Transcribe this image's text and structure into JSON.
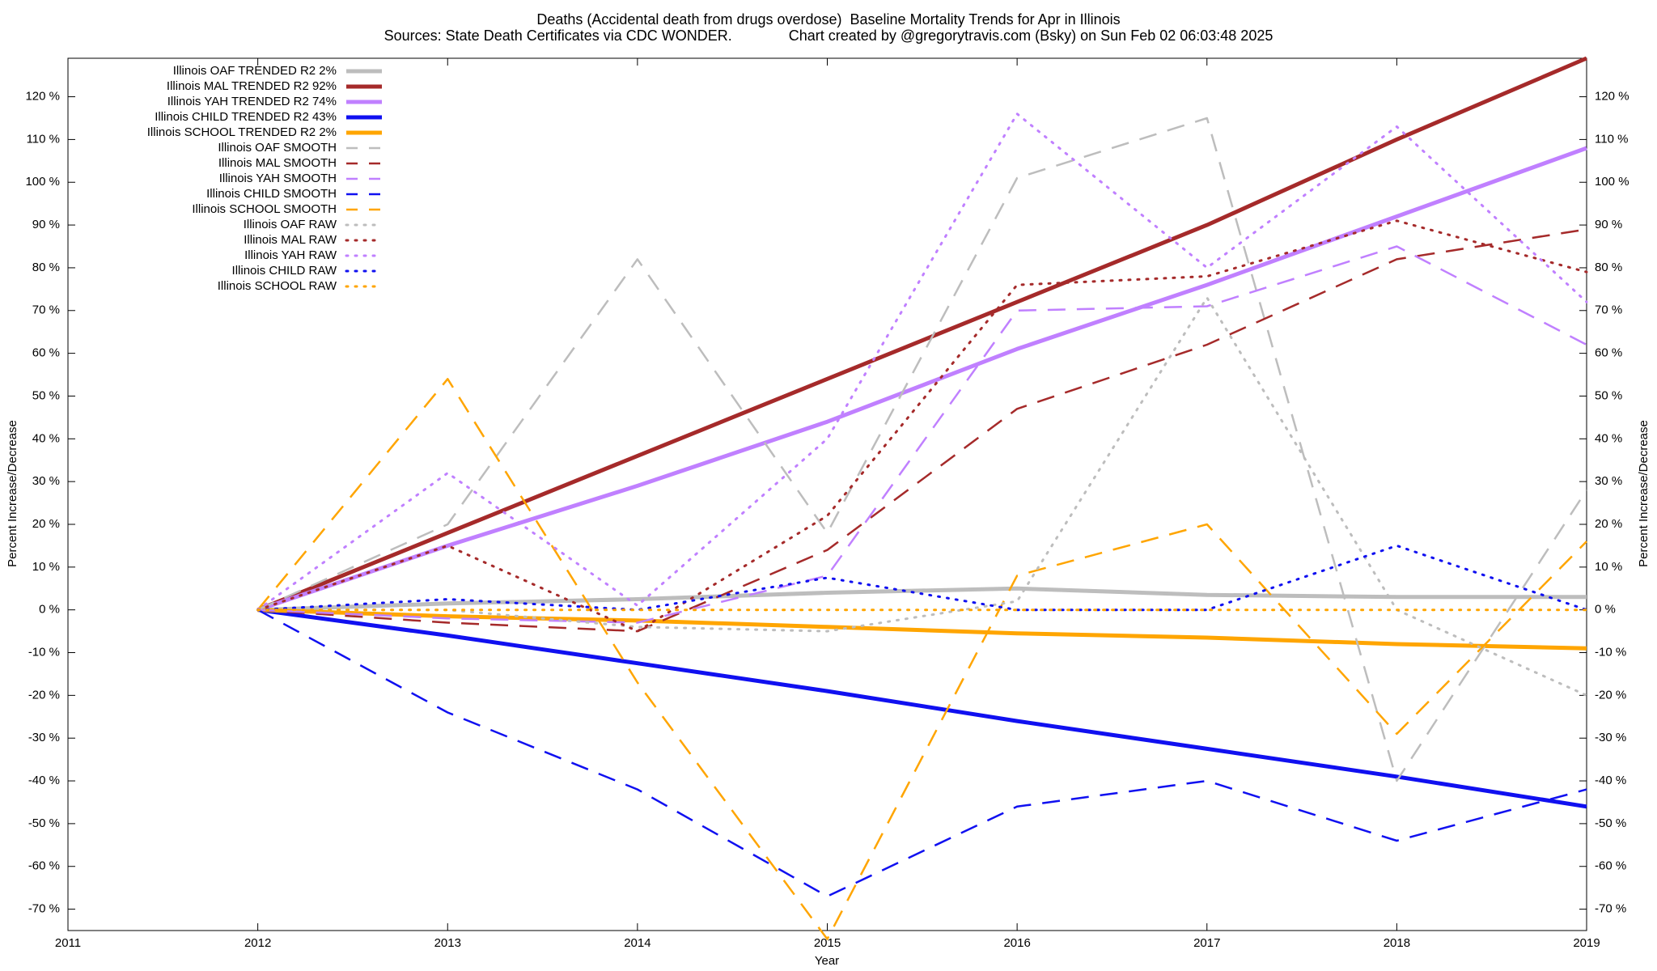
{
  "chart_data": {
    "type": "line",
    "title": "Deaths (Accidental death from drugs overdose)  Baseline Mortality Trends for Apr in Illinois",
    "subtitle": "Sources: State Death Certificates via CDC WONDER.              Chart created by @gregorytravis.com (Bsky) on Sun Feb 02 06:03:48 2025",
    "x_label": "Year",
    "y_label": "Percent Increase/Decrease",
    "y2_label": "Percent Increase/Decrease",
    "x": [
      2012,
      2013,
      2014,
      2015,
      2016,
      2017,
      2018,
      2019
    ],
    "xlim": [
      2011,
      2019
    ],
    "xticks": [
      2011,
      2012,
      2013,
      2014,
      2015,
      2016,
      2017,
      2018,
      2019
    ],
    "ylim": [
      -75,
      129
    ],
    "yticks": [
      {
        "value": -70,
        "label": "-70 %"
      },
      {
        "value": -60,
        "label": "-60 %"
      },
      {
        "value": -50,
        "label": "-50 %"
      },
      {
        "value": -40,
        "label": "-40 %"
      },
      {
        "value": -30,
        "label": "-30 %"
      },
      {
        "value": -20,
        "label": "-20 %"
      },
      {
        "value": -10,
        "label": "-10 %"
      },
      {
        "value": 0,
        "label": "0 %"
      },
      {
        "value": 10,
        "label": "10 %"
      },
      {
        "value": 20,
        "label": "20 %"
      },
      {
        "value": 30,
        "label": "30 %"
      },
      {
        "value": 40,
        "label": "40 %"
      },
      {
        "value": 50,
        "label": "50 %"
      },
      {
        "value": 60,
        "label": "60 %"
      },
      {
        "value": 70,
        "label": "70 %"
      },
      {
        "value": 80,
        "label": "80 %"
      },
      {
        "value": 90,
        "label": "90 %"
      },
      {
        "value": 100,
        "label": "100 %"
      },
      {
        "value": 110,
        "label": "110 %"
      },
      {
        "value": 120,
        "label": "120 %"
      }
    ],
    "grid": false,
    "legend": "top-left",
    "series": [
      {
        "name": "Illinois OAF TRENDED R2  2%",
        "color": "#bdbdbd",
        "style": "solid",
        "values": [
          0,
          1.5,
          2.5,
          4,
          5,
          3.5,
          3,
          3
        ]
      },
      {
        "name": "Illinois MAL TRENDED R2  92%",
        "color": "#a52a2a",
        "style": "solid",
        "values": [
          0,
          18,
          36,
          54,
          72,
          90,
          110,
          129
        ]
      },
      {
        "name": "Illinois YAH TRENDED R2  74%",
        "color": "#c080ff",
        "style": "solid",
        "values": [
          0,
          15,
          29,
          44,
          61,
          76,
          92,
          108
        ]
      },
      {
        "name": "Illinois CHILD TRENDED R2  43%",
        "color": "#1010f0",
        "style": "solid",
        "values": [
          0,
          -6,
          -12.5,
          -19,
          -26,
          -32.5,
          -39,
          -46
        ]
      },
      {
        "name": "Illinois SCHOOL TRENDED R2  2%",
        "color": "#ffa500",
        "style": "solid",
        "values": [
          0,
          -1.5,
          -2.5,
          -4,
          -5.5,
          -6.5,
          -8,
          -9
        ]
      },
      {
        "name": "Illinois OAF SMOOTH",
        "color": "#bdbdbd",
        "style": "dashed",
        "values": [
          0,
          20,
          82,
          18,
          101,
          115,
          -40,
          28
        ]
      },
      {
        "name": "Illinois MAL SMOOTH",
        "color": "#a52a2a",
        "style": "dashed",
        "values": [
          0,
          -3,
          -5,
          14,
          47,
          62,
          82,
          89
        ]
      },
      {
        "name": "Illinois YAH SMOOTH",
        "color": "#c080ff",
        "style": "dashed",
        "values": [
          0,
          -2,
          -3,
          8,
          70,
          71,
          85,
          62
        ]
      },
      {
        "name": "Illinois CHILD SMOOTH",
        "color": "#1010f0",
        "style": "dashed",
        "values": [
          0,
          -24,
          -42,
          -67,
          -46,
          -40,
          -54,
          -42
        ]
      },
      {
        "name": "Illinois SCHOOL SMOOTH",
        "color": "#ffa500",
        "style": "dashed",
        "values": [
          0,
          54,
          -17,
          -77,
          8,
          20,
          -29,
          16
        ]
      },
      {
        "name": "Illinois OAF RAW",
        "color": "#bdbdbd",
        "style": "dotted",
        "values": [
          0,
          0,
          -4,
          -5,
          2,
          73,
          0,
          -20
        ]
      },
      {
        "name": "Illinois MAL RAW",
        "color": "#a52a2a",
        "style": "dotted",
        "values": [
          0,
          15,
          -5,
          22,
          76,
          78,
          91,
          79
        ]
      },
      {
        "name": "Illinois YAH RAW",
        "color": "#c080ff",
        "style": "dotted",
        "values": [
          0,
          32,
          1,
          40,
          116,
          80,
          113,
          72
        ]
      },
      {
        "name": "Illinois CHILD RAW",
        "color": "#1010f0",
        "style": "dotted",
        "values": [
          0,
          2.5,
          0,
          7.5,
          0,
          0,
          15,
          0
        ]
      },
      {
        "name": "Illinois SCHOOL RAW",
        "color": "#ffa500",
        "style": "dotted",
        "values": [
          0,
          0,
          0,
          0,
          0,
          0,
          0,
          0
        ]
      }
    ]
  }
}
